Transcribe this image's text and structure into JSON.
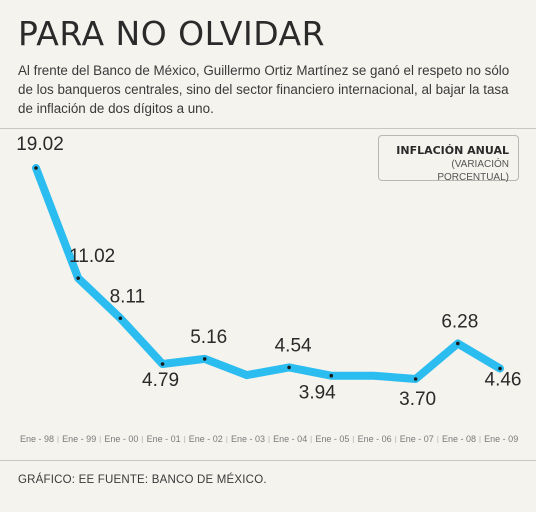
{
  "header": {
    "title": "PARA NO OLVIDAR",
    "subtitle": "Al frente del Banco de México, Guillermo Ortiz Martínez se ganó el respeto no sólo de los banqueros centrales, sino del sector financiero internacional, al bajar la tasa de inflación de dos dígitos a uno."
  },
  "legend": {
    "title": "INFLACIÓN ANUAL",
    "subtitle": "(VARIACIÓN PORCENTUAL)"
  },
  "footer": {
    "text": "GRÁFICO: EE FUENTE: BANCO DE MÉXICO."
  },
  "colors": {
    "line": "#2bbcf0",
    "background": "#f4f3ee",
    "text": "#2a2a2a"
  },
  "chart_data": {
    "type": "line",
    "title": "INFLACIÓN ANUAL",
    "subtitle": "(VARIACIÓN PORCENTUAL)",
    "categories": [
      "Ene - 98",
      "Ene - 99",
      "Ene - 00",
      "Ene - 01",
      "Ene - 02",
      "Ene - 03",
      "Ene - 04",
      "Ene - 05",
      "Ene - 06",
      "Ene - 07",
      "Ene - 08",
      "Ene - 09"
    ],
    "x": [
      "Ene - 98",
      "",
      "Ene - 99",
      "",
      "Ene - 00",
      "",
      "Ene - 01",
      "",
      "Ene - 02",
      "",
      "Ene - 03",
      "",
      "Ene - 04",
      "",
      "Ene - 05",
      "",
      "Ene - 06",
      "",
      "Ene - 07",
      "",
      "Ene - 08",
      "",
      "Ene - 09"
    ],
    "values": [
      19.02,
      null,
      11.02,
      null,
      8.11,
      null,
      4.79,
      null,
      5.16,
      null,
      3.98,
      null,
      4.54,
      null,
      3.94,
      null,
      3.94,
      null,
      3.7,
      null,
      6.28,
      null,
      4.46
    ],
    "series": [
      {
        "values": [
          19.02,
          11.02,
          8.11,
          4.79,
          5.16,
          3.98,
          4.54,
          3.94,
          3.94,
          3.7,
          6.28,
          4.46
        ],
        "labels": [
          "19.02",
          "11.02",
          "8.11",
          "4.79",
          "5.16",
          "",
          "4.54",
          "3.94",
          "",
          "3.70",
          "6.28",
          "4.46"
        ],
        "marked": [
          true,
          true,
          true,
          true,
          true,
          false,
          true,
          true,
          false,
          true,
          true,
          true
        ]
      }
    ],
    "ylim": [
      3.0,
      19.5
    ],
    "grid": false,
    "legend_position": "top-right"
  }
}
